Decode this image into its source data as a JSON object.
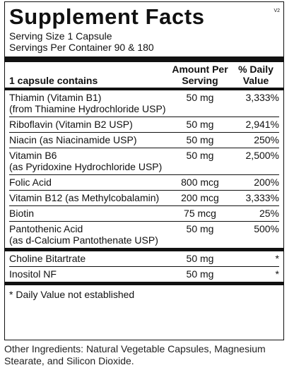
{
  "header": {
    "title": "Supplement Facts",
    "version": "V2",
    "serving_size": "Serving Size 1 Capsule",
    "servings_per_container": "Servings Per Container 90 & 180"
  },
  "table": {
    "columns": [
      [
        "1 capsule contains"
      ],
      [
        "Amount Per",
        "Serving"
      ],
      [
        "% Daily",
        "Value"
      ]
    ],
    "rows": [
      {
        "name": [
          "Thiamin (Vitamin B1)",
          "(from Thiamine Hydrochloride USP)"
        ],
        "amount": "50 mg",
        "dv": "3,333%"
      },
      {
        "name": [
          "Riboflavin (Vitamin B2 USP)"
        ],
        "amount": "50 mg",
        "dv": "2,941%"
      },
      {
        "name": [
          "Niacin (as Niacinamide USP)"
        ],
        "amount": "50 mg",
        "dv": "250%"
      },
      {
        "name": [
          "Vitamin B6",
          "(as Pyridoxine Hydrochloride USP)"
        ],
        "amount": "50 mg",
        "dv": "2,500%"
      },
      {
        "name": [
          "Folic Acid"
        ],
        "amount": "800 mcg",
        "dv": "200%"
      },
      {
        "name": [
          "Vitamin B12 (as Methylcobalamin)"
        ],
        "amount": "200 mcg",
        "dv": "3,333%"
      },
      {
        "name": [
          "Biotin"
        ],
        "amount": "75 mcg",
        "dv": "25%"
      },
      {
        "name": [
          "Pantothenic Acid",
          "(as d-Calcium Pantothenate USP)"
        ],
        "amount": "50 mg",
        "dv": "500%"
      }
    ],
    "other_rows": [
      {
        "name": [
          "Choline Bitartrate"
        ],
        "amount": "50 mg",
        "dv": "*"
      },
      {
        "name": [
          "Inositol NF"
        ],
        "amount": "50 mg",
        "dv": "*"
      }
    ]
  },
  "footnote": "* Daily Value not established",
  "other_ingredients": "Other Ingredients: Natural Vegetable Capsules, Magnesium Stearate, and Silicon Dioxide."
}
